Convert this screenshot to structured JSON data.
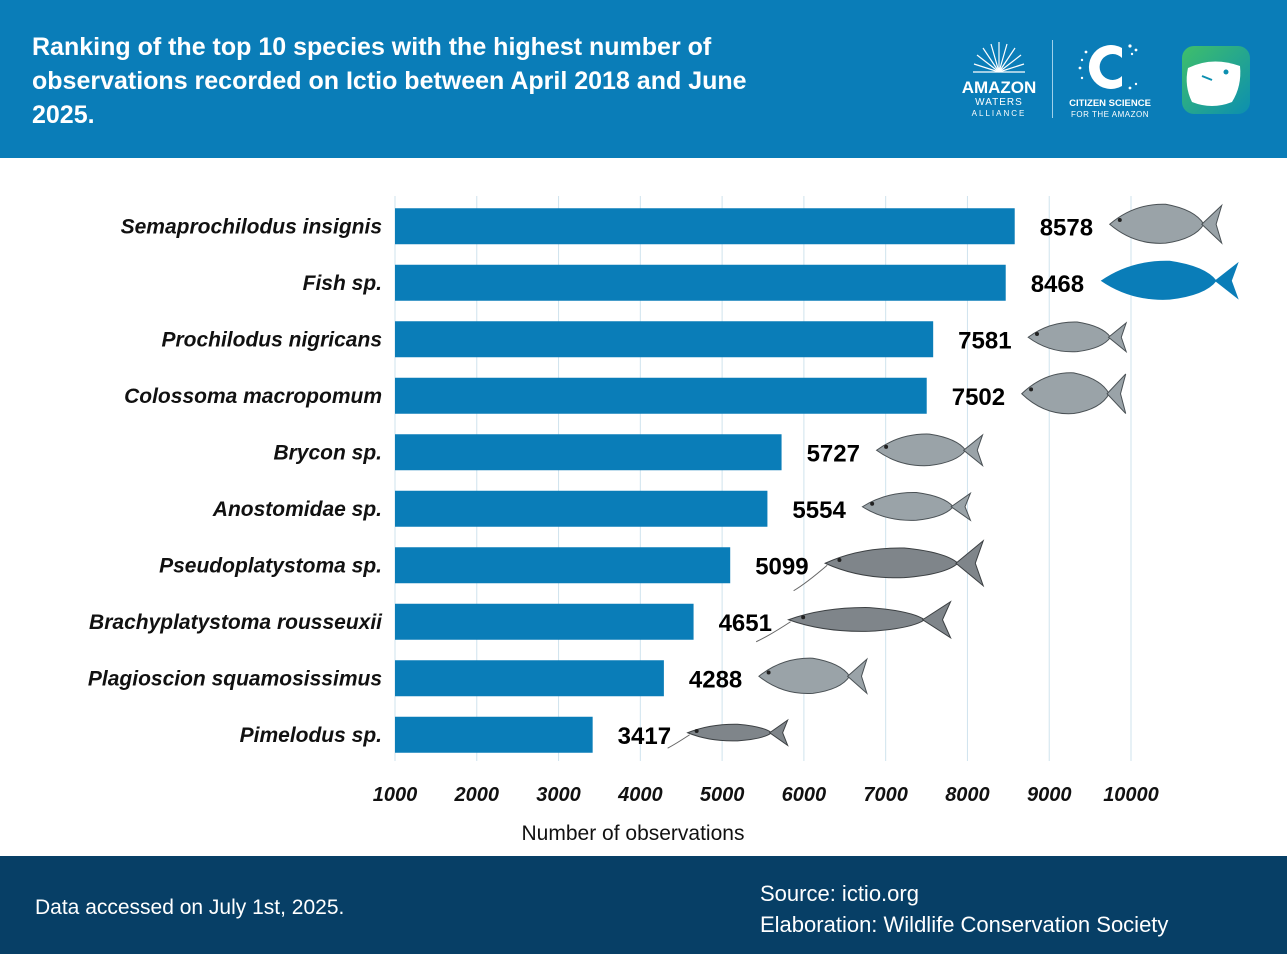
{
  "header": {
    "title": "Ranking of the top 10 species with the highest number of observations recorded on Ictio between April 2018 and June 2025.",
    "logos": {
      "amazon_waters": {
        "line1": "AMAZON",
        "line2": "WATERS",
        "line3": "ALLIANCE"
      },
      "citizen_science": {
        "line1": "CITIZEN SCIENCE",
        "line2": "FOR THE AMAZON"
      },
      "app_icon": "ictio-fish-app-icon"
    }
  },
  "colors": {
    "header_bg": "#0A7DB8",
    "bar": "#0A7DB8",
    "footer_bg": "#073F66",
    "grid": "#cfe3ee"
  },
  "chart_data": {
    "type": "bar",
    "orientation": "horizontal",
    "categories": [
      "Semaprochilodus insignis",
      "Fish sp.",
      "Prochilodus nigricans",
      "Colossoma macropomum",
      "Brycon sp.",
      "Anostomidae sp.",
      "Pseudoplatystoma sp.",
      "Brachyplatystoma rousseuxii",
      "Plagioscion squamosissimus",
      "Pimelodus sp."
    ],
    "values": [
      8578,
      8468,
      7581,
      7502,
      5727,
      5554,
      5099,
      4651,
      4288,
      3417
    ],
    "data_labels": [
      "8578",
      "8468",
      "7581",
      "7502",
      "5727",
      "5554",
      "5099",
      "4651",
      "4288",
      "3417"
    ],
    "xlabel": "Number of observations",
    "xlim": [
      1000,
      10000
    ],
    "xticks": [
      1000,
      2000,
      3000,
      4000,
      5000,
      6000,
      7000,
      8000,
      9000,
      10000
    ],
    "xtick_labels": [
      "1000",
      "2000",
      "3000",
      "4000",
      "5000",
      "6000",
      "7000",
      "8000",
      "9000",
      "10000"
    ],
    "grid": "vertical",
    "icons": [
      "fish-icon",
      "fish-silhouette-icon",
      "fish-icon",
      "fish-icon",
      "fish-icon",
      "fish-icon",
      "catfish-icon",
      "catfish-icon",
      "fish-icon",
      "catfish-icon"
    ]
  },
  "footer": {
    "accessed": "Data accessed on July 1st, 2025.",
    "source": "Source: ictio.org",
    "elaboration": "Elaboration: Wildlife Conservation Society"
  }
}
